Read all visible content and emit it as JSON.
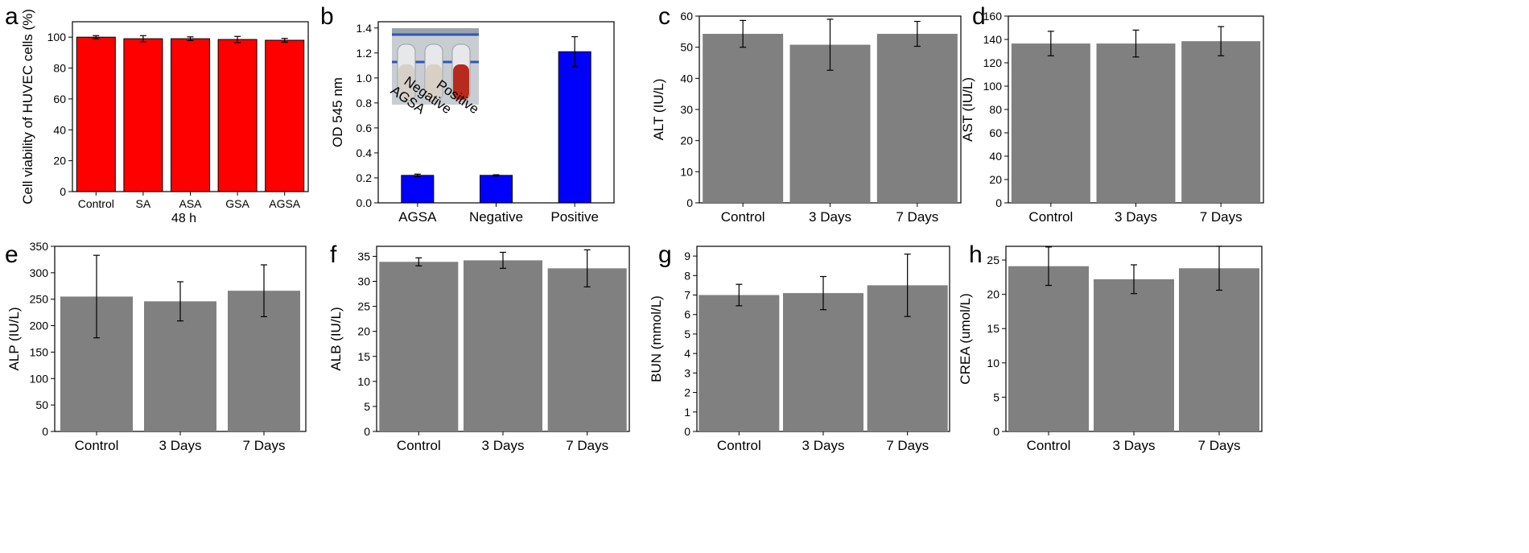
{
  "colors": {
    "red": "#ff0000",
    "blue": "#0000ff",
    "gray": "#808080"
  },
  "chart_data": [
    {
      "panel": "a",
      "type": "bar",
      "categories": [
        "Control",
        "SA",
        "ASA",
        "GSA",
        "AGSA"
      ],
      "values": [
        100,
        99,
        99,
        98.5,
        98
      ],
      "errors": [
        1.0,
        2.0,
        1.2,
        2.0,
        1.2
      ],
      "ylabel": "Cell viability of HUVEC cells (%)",
      "xlabel": "48 h",
      "ylim": [
        0,
        110
      ],
      "yticks": [
        0,
        20,
        40,
        60,
        80,
        100
      ],
      "ytick_labels": [
        "0",
        "20",
        "40",
        "60",
        "80",
        "100"
      ],
      "color": "red",
      "grid": false
    },
    {
      "panel": "b",
      "type": "bar",
      "categories": [
        "AGSA",
        "Negative",
        "Positive"
      ],
      "values": [
        0.22,
        0.22,
        1.21
      ],
      "errors": [
        0.01,
        0.005,
        0.12
      ],
      "ylabel": "OD 545 nm",
      "xlabel": "",
      "ylim": [
        0,
        1.45
      ],
      "yticks": [
        0,
        0.2,
        0.4,
        0.6,
        0.8,
        1.0,
        1.2,
        1.4
      ],
      "ytick_labels": [
        "0.0",
        "0.2",
        "0.4",
        "0.6",
        "0.8",
        "1.0",
        "1.2",
        "1.4"
      ],
      "color": "blue",
      "grid": false,
      "inset": {
        "description_labels": [
          "AGSA",
          "Negative",
          "Positive"
        ],
        "tube_colors": [
          "#d7d0c9",
          "#d9cfc5",
          "#b92a1e"
        ]
      }
    },
    {
      "panel": "c",
      "type": "bar",
      "categories": [
        "Control",
        "3 Days",
        "7 Days"
      ],
      "values": [
        54.3,
        50.8,
        54.3
      ],
      "errors": [
        4.3,
        8.2,
        4.0
      ],
      "ylabel": "ALT (IU/L)",
      "xlabel": "",
      "ylim": [
        0,
        60
      ],
      "yticks": [
        0,
        10,
        20,
        30,
        40,
        50,
        60
      ],
      "ytick_labels": [
        "0",
        "10",
        "20",
        "30",
        "40",
        "50",
        "60"
      ],
      "color": "gray",
      "grid": false
    },
    {
      "panel": "d",
      "type": "bar",
      "categories": [
        "Control",
        "3 Days",
        "7 Days"
      ],
      "values": [
        136.5,
        136.5,
        138.5
      ],
      "errors": [
        10.5,
        11.5,
        12.5
      ],
      "ylabel": "AST (IU/L)",
      "xlabel": "",
      "ylim": [
        0,
        160
      ],
      "yticks": [
        0,
        20,
        40,
        60,
        80,
        100,
        120,
        140,
        160
      ],
      "ytick_labels": [
        "0",
        "20",
        "40",
        "60",
        "80",
        "100",
        "120",
        "140",
        "160"
      ],
      "color": "gray",
      "grid": false
    },
    {
      "panel": "e",
      "type": "bar",
      "categories": [
        "Control",
        "3 Days",
        "7 Days"
      ],
      "values": [
        255,
        246,
        266
      ],
      "errors": [
        78,
        37,
        49
      ],
      "ylabel": "ALP (IU/L)",
      "xlabel": "",
      "ylim": [
        0,
        350
      ],
      "yticks": [
        0,
        50,
        100,
        150,
        200,
        250,
        300,
        350
      ],
      "ytick_labels": [
        "0",
        "50",
        "100",
        "150",
        "200",
        "250",
        "300",
        "350"
      ],
      "color": "gray",
      "grid": false
    },
    {
      "panel": "f",
      "type": "bar",
      "categories": [
        "Control",
        "3 Days",
        "7 Days"
      ],
      "values": [
        33.9,
        34.2,
        32.6
      ],
      "errors": [
        0.8,
        1.6,
        3.7
      ],
      "ylabel": "ALB (IU/L)",
      "xlabel": "",
      "ylim": [
        0,
        37
      ],
      "yticks": [
        0,
        5,
        10,
        15,
        20,
        25,
        30,
        35
      ],
      "ytick_labels": [
        "0",
        "5",
        "10",
        "15",
        "20",
        "25",
        "30",
        "35"
      ],
      "color": "gray",
      "grid": false
    },
    {
      "panel": "g",
      "type": "bar",
      "categories": [
        "Control",
        "3 Days",
        "7 Days"
      ],
      "values": [
        7.0,
        7.1,
        7.5
      ],
      "errors": [
        0.55,
        0.85,
        1.6
      ],
      "ylabel": "BUN (mmol/L)",
      "xlabel": "",
      "ylim": [
        0,
        9.5
      ],
      "yticks": [
        0,
        1,
        2,
        3,
        4,
        5,
        6,
        7,
        8,
        9
      ],
      "ytick_labels": [
        "0",
        "1",
        "2",
        "3",
        "4",
        "5",
        "6",
        "7",
        "8",
        "9"
      ],
      "color": "gray",
      "grid": false
    },
    {
      "panel": "h",
      "type": "bar",
      "categories": [
        "Control",
        "3 Days",
        "7 Days"
      ],
      "values": [
        24.1,
        22.2,
        23.8
      ],
      "errors": [
        2.8,
        2.1,
        3.2
      ],
      "ylabel": "CREA (umol/L)",
      "xlabel": "",
      "ylim": [
        0,
        27
      ],
      "yticks": [
        0,
        5,
        10,
        15,
        20,
        25
      ],
      "ytick_labels": [
        "0",
        "5",
        "10",
        "15",
        "20",
        "25"
      ],
      "color": "gray",
      "grid": false
    }
  ]
}
